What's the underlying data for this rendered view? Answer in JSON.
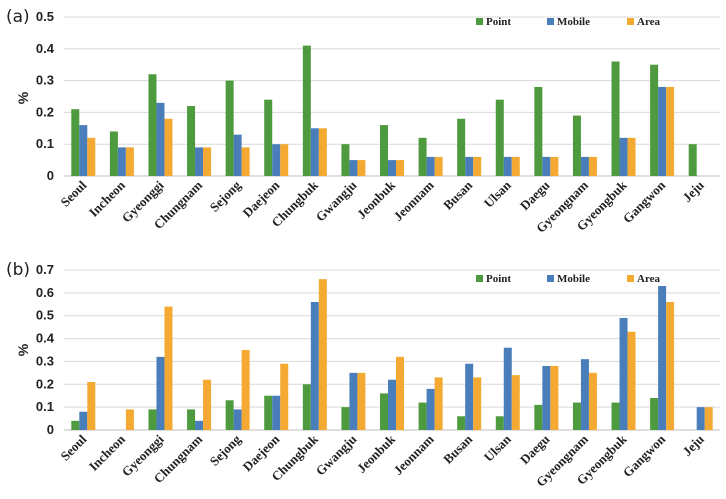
{
  "colors": {
    "Point": "#4e9a3e",
    "Mobile": "#4a7ebb",
    "Area": "#f4a933"
  },
  "chart_data": [
    {
      "panel": "(a)",
      "type": "bar",
      "ylabel": "%",
      "ylim": [
        0,
        0.5
      ],
      "yticks": [
        "0",
        "0.1",
        "0.2",
        "0.3",
        "0.4",
        "0.5"
      ],
      "categories": [
        "Seoul",
        "Incheon",
        "Gyeonggi",
        "Chungnam",
        "Sejong",
        "Daejeon",
        "Chungbuk",
        "Gwangju",
        "Jeonbuk",
        "Jeonnam",
        "Busan",
        "Ulsan",
        "Daegu",
        "Gyeongnam",
        "Gyeongbuk",
        "Gangwon",
        "Jeju"
      ],
      "legend": "top-right",
      "grid": true,
      "series": [
        {
          "name": "Point",
          "values": [
            0.21,
            0.14,
            0.32,
            0.22,
            0.3,
            0.24,
            0.41,
            0.1,
            0.16,
            0.12,
            0.18,
            0.24,
            0.28,
            0.19,
            0.36,
            0.35,
            0.1
          ]
        },
        {
          "name": "Mobile",
          "values": [
            0.16,
            0.09,
            0.23,
            0.09,
            0.13,
            0.1,
            0.15,
            0.05,
            0.05,
            0.06,
            0.06,
            0.06,
            0.06,
            0.06,
            0.12,
            0.28,
            0
          ]
        },
        {
          "name": "Area",
          "values": [
            0.12,
            0.09,
            0.18,
            0.09,
            0.09,
            0.1,
            0.15,
            0.05,
            0.05,
            0.06,
            0.06,
            0.06,
            0.06,
            0.06,
            0.12,
            0.28,
            0
          ]
        }
      ]
    },
    {
      "panel": "(b)",
      "type": "bar",
      "ylabel": "%",
      "ylim": [
        0,
        0.7
      ],
      "yticks": [
        "0",
        "0.1",
        "0.2",
        "0.3",
        "0.4",
        "0.5",
        "0.6",
        "0.7"
      ],
      "categories": [
        "Seoul",
        "Incheon",
        "Gyeonggi",
        "Chungnam",
        "Sejong",
        "Daejeon",
        "Chungbuk",
        "Gwangju",
        "Jeonbuk",
        "Jeonnam",
        "Busan",
        "Ulsan",
        "Daegu",
        "Gyeongnam",
        "Gyeongbuk",
        "Gangwon",
        "Jeju"
      ],
      "legend": "top-right",
      "grid": true,
      "series": [
        {
          "name": "Point",
          "values": [
            0.04,
            0,
            0.09,
            0.09,
            0.13,
            0.15,
            0.2,
            0.1,
            0.16,
            0.12,
            0.06,
            0.06,
            0.11,
            0.12,
            0.12,
            0.14,
            0
          ]
        },
        {
          "name": "Mobile",
          "values": [
            0.08,
            0,
            0.32,
            0.04,
            0.09,
            0.15,
            0.56,
            0.25,
            0.22,
            0.18,
            0.29,
            0.36,
            0.28,
            0.31,
            0.49,
            0.63,
            0.1
          ]
        },
        {
          "name": "Area",
          "values": [
            0.21,
            0.09,
            0.54,
            0.22,
            0.35,
            0.29,
            0.66,
            0.25,
            0.32,
            0.23,
            0.23,
            0.24,
            0.28,
            0.25,
            0.43,
            0.56,
            0.1
          ]
        }
      ]
    }
  ]
}
